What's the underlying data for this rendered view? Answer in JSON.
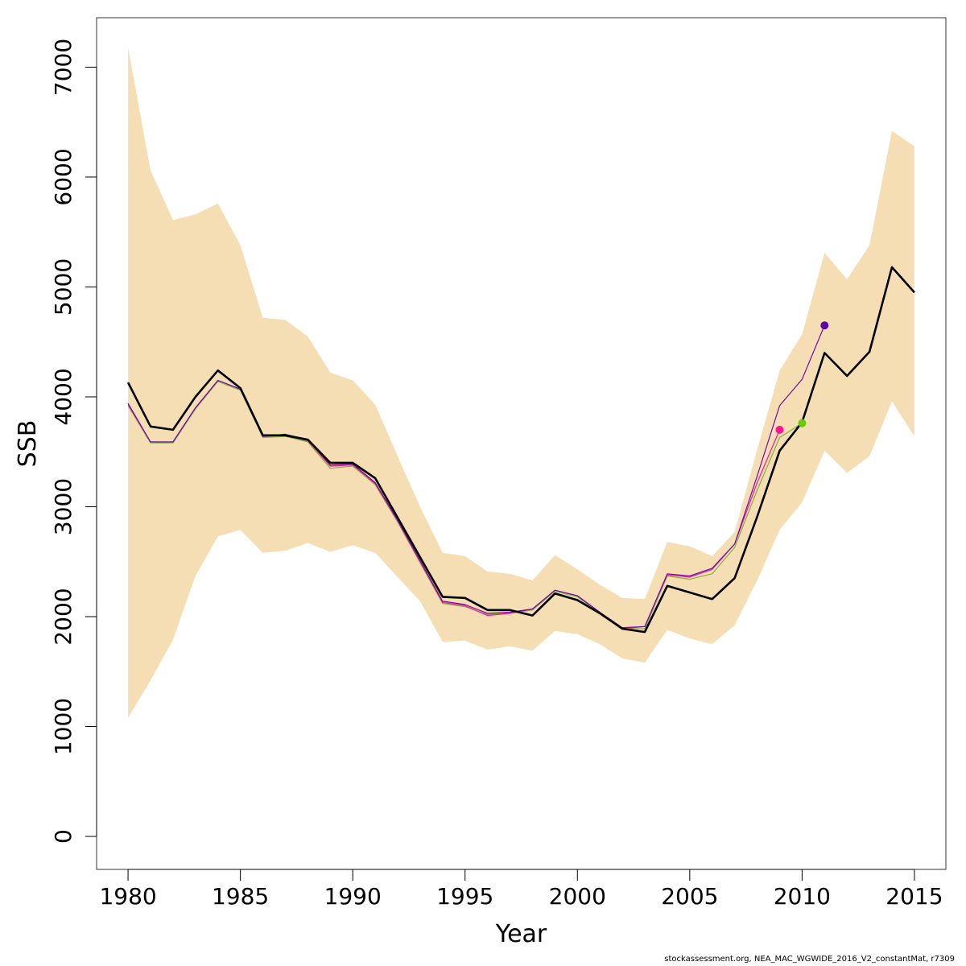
{
  "chart_data": {
    "type": "line",
    "title": "",
    "xlabel": "Year",
    "ylabel": "SSB",
    "xlim": [
      1978.6,
      2016.4
    ],
    "ylim": [
      -300,
      7450
    ],
    "grid": false,
    "x_ticks": [
      1980,
      1985,
      1990,
      1995,
      2000,
      2005,
      2010,
      2015
    ],
    "y_ticks": [
      0,
      1000,
      2000,
      3000,
      4000,
      5000,
      6000,
      7000
    ],
    "band": {
      "color": "#f5deb3",
      "x": [
        1980,
        1981,
        1982,
        1983,
        1984,
        1985,
        1986,
        1987,
        1988,
        1989,
        1990,
        1991,
        1992,
        1993,
        1994,
        1995,
        1996,
        1997,
        1998,
        1999,
        2000,
        2001,
        2002,
        2003,
        2004,
        2005,
        2006,
        2007,
        2008,
        2009,
        2010,
        2011,
        2012,
        2013,
        2014,
        2015
      ],
      "upper": [
        7180,
        6060,
        5610,
        5660,
        5760,
        5380,
        4720,
        4700,
        4550,
        4220,
        4150,
        3930,
        3460,
        3000,
        2580,
        2550,
        2410,
        2390,
        2330,
        2560,
        2430,
        2290,
        2170,
        2160,
        2680,
        2640,
        2550,
        2770,
        3520,
        4240,
        4570,
        5310,
        5070,
        5380,
        6420,
        6280
      ],
      "lower": [
        1080,
        1420,
        1790,
        2370,
        2730,
        2790,
        2580,
        2600,
        2670,
        2590,
        2650,
        2580,
        2360,
        2140,
        1770,
        1780,
        1700,
        1730,
        1690,
        1870,
        1840,
        1750,
        1620,
        1580,
        1880,
        1800,
        1750,
        1920,
        2330,
        2790,
        3040,
        3510,
        3310,
        3460,
        3960,
        3640
      ]
    },
    "series": [
      {
        "color": "#000000",
        "x": [
          1980,
          1981,
          1982,
          1983,
          1984,
          1985,
          1986,
          1987,
          1988,
          1989,
          1990,
          1991,
          1992,
          1993,
          1994,
          1995,
          1996,
          1997,
          1998,
          1999,
          2000,
          2001,
          2002,
          2003,
          2004,
          2005,
          2006,
          2007,
          2008,
          2009,
          2010,
          2011,
          2012,
          2013,
          2014,
          2015
        ],
        "values": [
          4130,
          3730,
          3700,
          4000,
          4240,
          4080,
          3650,
          3650,
          3610,
          3400,
          3400,
          3260,
          2900,
          2540,
          2180,
          2170,
          2060,
          2060,
          2010,
          2210,
          2150,
          2030,
          1890,
          1860,
          2280,
          2220,
          2160,
          2350,
          2910,
          3510,
          3770,
          4400,
          4190,
          4410,
          5180,
          4950
        ]
      },
      {
        "color": "#7cb342",
        "x": [
          1980,
          1981,
          1982,
          1983,
          1984,
          1985,
          1986,
          1987,
          1988,
          1989,
          1990,
          1991,
          1992,
          1993,
          1994,
          1995,
          1996,
          1997,
          1998,
          1999,
          2000,
          2001,
          2002,
          2003,
          2004,
          2005,
          2006,
          2007,
          2008,
          2009,
          2010
        ],
        "values": [
          3920,
          3580,
          3580,
          3890,
          4140,
          4060,
          3630,
          3640,
          3590,
          3350,
          3370,
          3200,
          2860,
          2490,
          2120,
          2090,
          2020,
          2030,
          2060,
          2230,
          2180,
          2030,
          1890,
          1890,
          2370,
          2340,
          2390,
          2630,
          3150,
          3630,
          3760
        ],
        "end_marker": true,
        "marker_color": "#66cc00"
      },
      {
        "color": "#ff1493",
        "x": [
          1980,
          1981,
          1982,
          1983,
          1984,
          1985,
          1986,
          1987,
          1988,
          1989,
          1990,
          1991,
          1992,
          1993,
          1994,
          1995,
          1996,
          1997,
          1998,
          1999,
          2000,
          2001,
          2002,
          2003,
          2004,
          2005,
          2006,
          2007,
          2008,
          2009
        ],
        "values": [
          3930,
          3590,
          3590,
          3900,
          4150,
          4070,
          3640,
          3650,
          3600,
          3370,
          3380,
          3210,
          2870,
          2500,
          2130,
          2100,
          2010,
          2030,
          2070,
          2240,
          2190,
          2040,
          1890,
          1910,
          2380,
          2360,
          2430,
          2660,
          3220,
          3700
        ],
        "end_marker": true,
        "marker_color": "#ff1493"
      },
      {
        "color": "#6a0dad",
        "x": [
          1980,
          1981,
          1982,
          1983,
          1984,
          1985,
          1986,
          1987,
          1988,
          1989,
          1990,
          1991,
          1992,
          1993,
          1994,
          1995,
          1996,
          1997,
          1998,
          1999,
          2000,
          2001,
          2002,
          2003,
          2004,
          2005,
          2006,
          2007,
          2008,
          2009,
          2010,
          2011
        ],
        "values": [
          3940,
          3590,
          3590,
          3900,
          4150,
          4070,
          3640,
          3660,
          3610,
          3380,
          3390,
          3220,
          2880,
          2510,
          2140,
          2110,
          2030,
          2040,
          2070,
          2240,
          2190,
          2040,
          1900,
          1910,
          2390,
          2370,
          2440,
          2660,
          3280,
          3920,
          4160,
          4650
        ],
        "end_marker": true,
        "marker_color": "#5b0aa0"
      }
    ]
  },
  "footer": "stockassessment.org, NEA_MAC_WGWIDE_2016_V2_constantMat, r7309"
}
